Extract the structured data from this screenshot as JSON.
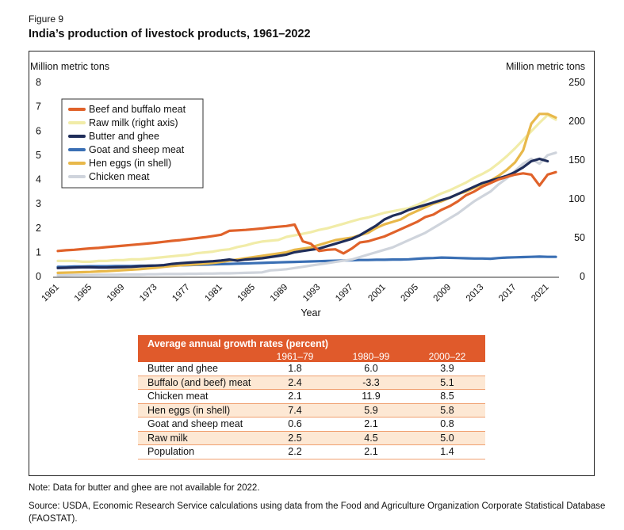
{
  "figure_label": "Figure 9",
  "figure_title": "India’s production of livestock products, 1961–2022",
  "chart_data": {
    "type": "line",
    "left_axis_label": "Million metric tons",
    "right_axis_label": "Million metric tons",
    "xlabel": "Year",
    "x": [
      1961,
      1962,
      1963,
      1964,
      1965,
      1966,
      1967,
      1968,
      1969,
      1970,
      1971,
      1972,
      1973,
      1974,
      1975,
      1976,
      1977,
      1978,
      1979,
      1980,
      1981,
      1982,
      1983,
      1984,
      1985,
      1986,
      1987,
      1988,
      1989,
      1990,
      1991,
      1992,
      1993,
      1994,
      1995,
      1996,
      1997,
      1998,
      1999,
      2000,
      2001,
      2002,
      2003,
      2004,
      2005,
      2006,
      2007,
      2008,
      2009,
      2010,
      2011,
      2012,
      2013,
      2014,
      2015,
      2016,
      2017,
      2018,
      2019,
      2020,
      2021,
      2022
    ],
    "x_ticks": [
      "1961",
      "1965",
      "1969",
      "1973",
      "1977",
      "1981",
      "1985",
      "1989",
      "1993",
      "1997",
      "2001",
      "2005",
      "2009",
      "2013",
      "2017",
      "2021"
    ],
    "ylim_left": [
      0,
      8
    ],
    "yticks_left": [
      "0",
      "1",
      "2",
      "3",
      "4",
      "5",
      "6",
      "7",
      "8"
    ],
    "ylim_right": [
      0,
      250
    ],
    "yticks_right": [
      "0",
      "50",
      "100",
      "150",
      "200",
      "250"
    ],
    "grid": false,
    "legend_position": "top-left",
    "series": [
      {
        "name": "Beef and buffalo meat",
        "color": "#e0622a",
        "axis": "left",
        "values": [
          1.05,
          1.08,
          1.1,
          1.13,
          1.16,
          1.18,
          1.21,
          1.24,
          1.27,
          1.3,
          1.33,
          1.36,
          1.39,
          1.43,
          1.47,
          1.5,
          1.54,
          1.58,
          1.62,
          1.67,
          1.72,
          1.88,
          1.9,
          1.92,
          1.95,
          1.98,
          2.02,
          2.05,
          2.08,
          2.14,
          1.45,
          1.35,
          1.05,
          1.1,
          1.12,
          0.95,
          1.15,
          1.4,
          1.45,
          1.55,
          1.65,
          1.8,
          1.95,
          2.1,
          2.25,
          2.45,
          2.55,
          2.75,
          2.9,
          3.1,
          3.35,
          3.5,
          3.7,
          3.85,
          4.0,
          4.1,
          4.2,
          4.25,
          4.2,
          3.75,
          4.2,
          4.3
        ]
      },
      {
        "name": "Raw milk (right axis)",
        "color": "#f1eca8",
        "axis": "right",
        "values": [
          20,
          20,
          20,
          19,
          19,
          20,
          20,
          21,
          21,
          22,
          22,
          23,
          24,
          25,
          26,
          27,
          28,
          30,
          31,
          32,
          34,
          35,
          38,
          40,
          43,
          45,
          46,
          47,
          51,
          53,
          55,
          57,
          60,
          62,
          65,
          68,
          71,
          74,
          76,
          79,
          82,
          84,
          86,
          88,
          92,
          97,
          102,
          107,
          111,
          116,
          121,
          127,
          132,
          138,
          146,
          155,
          165,
          176,
          187,
          198,
          208,
          202
        ]
      },
      {
        "name": "Butter and ghee",
        "color": "#1f2d5a",
        "axis": "left",
        "values": [
          0.35,
          0.36,
          0.37,
          0.38,
          0.38,
          0.37,
          0.37,
          0.38,
          0.39,
          0.4,
          0.42,
          0.44,
          0.45,
          0.47,
          0.52,
          0.55,
          0.57,
          0.59,
          0.61,
          0.63,
          0.66,
          0.7,
          0.65,
          0.7,
          0.72,
          0.75,
          0.8,
          0.85,
          0.9,
          1.0,
          1.05,
          1.1,
          1.15,
          1.25,
          1.35,
          1.45,
          1.55,
          1.7,
          1.9,
          2.1,
          2.35,
          2.5,
          2.6,
          2.75,
          2.85,
          2.95,
          3.05,
          3.15,
          3.25,
          3.4,
          3.55,
          3.7,
          3.85,
          3.95,
          4.05,
          4.15,
          4.3,
          4.5,
          4.75,
          4.85,
          4.75,
          null
        ]
      },
      {
        "name": "Goat and sheep meat",
        "color": "#3a6fb4",
        "axis": "left",
        "values": [
          0.4,
          0.4,
          0.41,
          0.41,
          0.42,
          0.42,
          0.42,
          0.43,
          0.43,
          0.43,
          0.44,
          0.44,
          0.45,
          0.45,
          0.46,
          0.46,
          0.47,
          0.48,
          0.49,
          0.5,
          0.51,
          0.52,
          0.53,
          0.54,
          0.55,
          0.56,
          0.57,
          0.58,
          0.59,
          0.6,
          0.61,
          0.62,
          0.63,
          0.64,
          0.65,
          0.66,
          0.67,
          0.68,
          0.68,
          0.69,
          0.69,
          0.7,
          0.7,
          0.71,
          0.73,
          0.75,
          0.76,
          0.78,
          0.77,
          0.76,
          0.75,
          0.74,
          0.74,
          0.73,
          0.76,
          0.78,
          0.79,
          0.8,
          0.81,
          0.82,
          0.81,
          0.81
        ]
      },
      {
        "name": "Hen eggs (in shell)",
        "color": "#e8b84a",
        "axis": "left",
        "values": [
          0.15,
          0.16,
          0.17,
          0.18,
          0.19,
          0.21,
          0.22,
          0.24,
          0.26,
          0.28,
          0.3,
          0.33,
          0.36,
          0.4,
          0.43,
          0.46,
          0.48,
          0.5,
          0.53,
          0.56,
          0.6,
          0.65,
          0.7,
          0.75,
          0.8,
          0.85,
          0.9,
          0.95,
          1.0,
          1.1,
          1.15,
          1.2,
          1.3,
          1.4,
          1.5,
          1.55,
          1.6,
          1.7,
          1.8,
          2.0,
          2.15,
          2.25,
          2.35,
          2.55,
          2.7,
          2.85,
          3.0,
          3.1,
          3.25,
          3.4,
          3.5,
          3.65,
          3.8,
          3.95,
          4.15,
          4.4,
          4.7,
          5.2,
          6.3,
          6.7,
          6.7,
          6.55
        ]
      },
      {
        "name": "Chicken meat",
        "color": "#cfd4dc",
        "axis": "left",
        "values": [
          0.05,
          0.05,
          0.06,
          0.06,
          0.06,
          0.07,
          0.07,
          0.07,
          0.08,
          0.08,
          0.08,
          0.09,
          0.09,
          0.1,
          0.1,
          0.1,
          0.11,
          0.11,
          0.12,
          0.12,
          0.13,
          0.13,
          0.14,
          0.15,
          0.16,
          0.17,
          0.25,
          0.27,
          0.3,
          0.35,
          0.4,
          0.45,
          0.5,
          0.55,
          0.6,
          0.65,
          0.7,
          0.8,
          0.9,
          1.0,
          1.1,
          1.2,
          1.35,
          1.5,
          1.65,
          1.8,
          2.0,
          2.2,
          2.4,
          2.6,
          2.85,
          3.1,
          3.3,
          3.5,
          3.8,
          4.05,
          4.35,
          4.65,
          4.85,
          4.65,
          5.0,
          5.1
        ]
      }
    ]
  },
  "growth_table": {
    "title": "Average annual growth rates (percent)",
    "periods": [
      "1961–79",
      "1980–99",
      "2000–22"
    ],
    "rows": [
      {
        "label": "Butter and ghee",
        "v1": "1.8",
        "v2": "6.0",
        "v3": "3.9"
      },
      {
        "label": "Buffalo (and beef) meat",
        "v1": "2.4",
        "v2": "-3.3",
        "v3": "5.1"
      },
      {
        "label": "Chicken meat",
        "v1": "2.1",
        "v2": "11.9",
        "v3": "8.5"
      },
      {
        "label": "Hen eggs (in shell)",
        "v1": "7.4",
        "v2": "5.9",
        "v3": "5.8"
      },
      {
        "label": "Goat and sheep meat",
        "v1": "0.6",
        "v2": "2.1",
        "v3": "0.8"
      },
      {
        "label": "Raw milk",
        "v1": "2.5",
        "v2": "4.5",
        "v3": "5.0"
      },
      {
        "label": "Population",
        "v1": "2.2",
        "v2": "2.1",
        "v3": "1.4"
      }
    ]
  },
  "note": "Note: Data for butter and ghee are not available for 2022.",
  "source": "Source: USDA, Economic Research Service calculations using data from the Food and Agriculture Organization Corporate Statistical Database (FAOSTAT)."
}
